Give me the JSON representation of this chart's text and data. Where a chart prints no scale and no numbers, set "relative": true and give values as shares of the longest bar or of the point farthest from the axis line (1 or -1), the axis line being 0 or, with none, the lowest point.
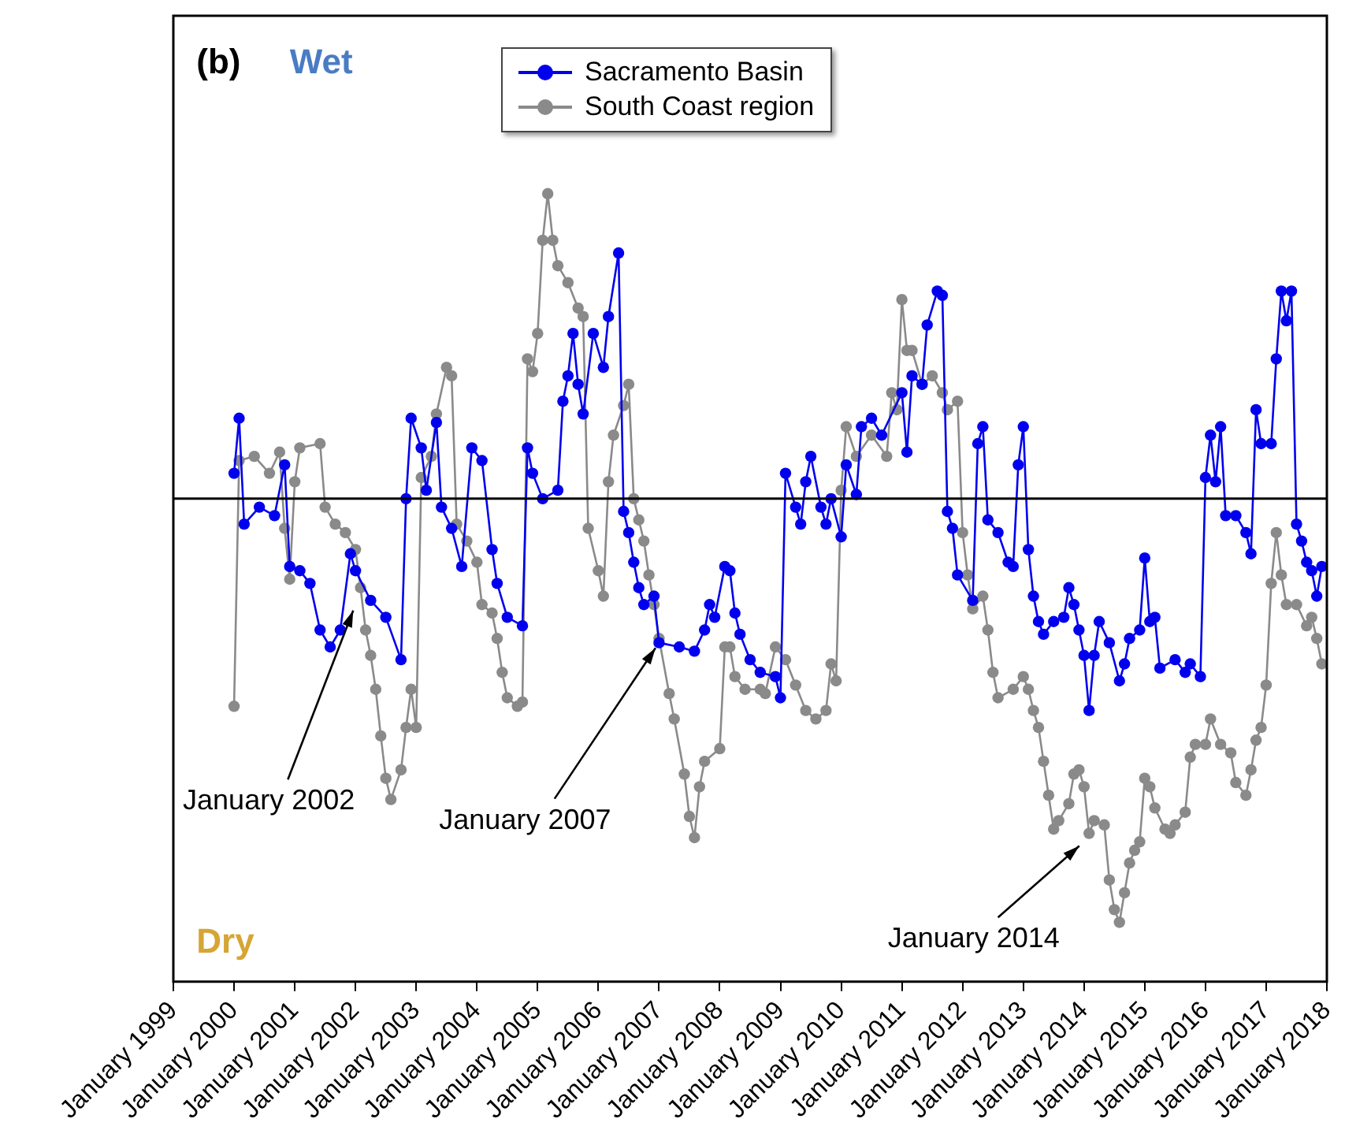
{
  "chart_data": {
    "type": "line",
    "relative": true,
    "marker": "circle",
    "legend": "top",
    "xlim": [
      "1999-01",
      "2018-01"
    ],
    "xticks": [
      {
        "value": "1999-01",
        "label": "January 1999"
      },
      {
        "value": "2000-01",
        "label": "January 2000"
      },
      {
        "value": "2001-01",
        "label": "January 2001"
      },
      {
        "value": "2002-01",
        "label": "January 2002"
      },
      {
        "value": "2003-01",
        "label": "January 2003"
      },
      {
        "value": "2004-01",
        "label": "January 2004"
      },
      {
        "value": "2005-01",
        "label": "January 2005"
      },
      {
        "value": "2006-01",
        "label": "January 2006"
      },
      {
        "value": "2007-01",
        "label": "January 2007"
      },
      {
        "value": "2008-01",
        "label": "January 2008"
      },
      {
        "value": "2009-01",
        "label": "January 2009"
      },
      {
        "value": "2010-01",
        "label": "January 2010"
      },
      {
        "value": "2011-01",
        "label": "January 2011"
      },
      {
        "value": "2012-01",
        "label": "January 2012"
      },
      {
        "value": "2013-01",
        "label": "January 2013"
      },
      {
        "value": "2014-01",
        "label": "January 2014"
      },
      {
        "value": "2015-01",
        "label": "January 2015"
      },
      {
        "value": "2016-01",
        "label": "January 2016"
      },
      {
        "value": "2017-01",
        "label": "January 2017"
      },
      {
        "value": "2018-01",
        "label": "January 2018"
      }
    ],
    "ref_lines": [
      {
        "axis": "y",
        "value": 0,
        "color": "#000000"
      }
    ],
    "annotations": [
      "(b)",
      "Wet",
      "Dry",
      {
        "text": "January 2002",
        "x": "2002-01",
        "y": -0.25
      },
      {
        "text": "January 2007",
        "x": "2007-01",
        "y": -0.34
      },
      {
        "text": "January 2014",
        "x": "2014-01",
        "y": -0.81
      }
    ],
    "series": [
      {
        "name": "Sacramento Basin",
        "color": "#0000ee",
        "x": [
          "2000-01",
          "2000-02",
          "2000-03",
          "2000-06",
          "2000-09",
          "2000-11",
          "2000-12",
          "2001-02",
          "2001-04",
          "2001-06",
          "2001-08",
          "2001-10",
          "2001-12",
          "2002-01",
          "2002-04",
          "2002-07",
          "2002-10",
          "2002-11",
          "2002-12",
          "2003-02",
          "2003-03",
          "2003-05",
          "2003-06",
          "2003-08",
          "2003-10",
          "2003-12",
          "2004-02",
          "2004-04",
          "2004-05",
          "2004-07",
          "2004-10",
          "2004-11",
          "2004-12",
          "2005-02",
          "2005-05",
          "2005-06",
          "2005-07",
          "2005-08",
          "2005-09",
          "2005-10",
          "2005-12",
          "2006-02",
          "2006-03",
          "2006-05",
          "2006-06",
          "2006-07",
          "2006-08",
          "2006-09",
          "2006-10",
          "2006-12",
          "2007-01",
          "2007-05",
          "2007-08",
          "2007-10",
          "2007-11",
          "2007-12",
          "2008-02",
          "2008-03",
          "2008-04",
          "2008-05",
          "2008-07",
          "2008-09",
          "2008-12",
          "2009-01",
          "2009-02",
          "2009-04",
          "2009-05",
          "2009-06",
          "2009-07",
          "2009-09",
          "2009-10",
          "2009-11",
          "2010-01",
          "2010-02",
          "2010-04",
          "2010-05",
          "2010-07",
          "2010-09",
          "2011-01",
          "2011-02",
          "2011-03",
          "2011-05",
          "2011-06",
          "2011-08",
          "2011-09",
          "2011-10",
          "2011-11",
          "2011-12",
          "2012-03",
          "2012-04",
          "2012-05",
          "2012-06",
          "2012-08",
          "2012-10",
          "2012-11",
          "2012-12",
          "2013-01",
          "2013-02",
          "2013-03",
          "2013-04",
          "2013-05",
          "2013-07",
          "2013-09",
          "2013-10",
          "2013-11",
          "2013-12",
          "2014-01",
          "2014-02",
          "2014-03",
          "2014-04",
          "2014-06",
          "2014-08",
          "2014-09",
          "2014-10",
          "2014-12",
          "2015-01",
          "2015-02",
          "2015-03",
          "2015-04",
          "2015-07",
          "2015-09",
          "2015-10",
          "2015-12",
          "2016-01",
          "2016-02",
          "2016-03",
          "2016-04",
          "2016-05",
          "2016-07",
          "2016-09",
          "2016-10",
          "2016-11",
          "2016-12",
          "2017-02",
          "2017-03",
          "2017-04",
          "2017-05",
          "2017-06",
          "2017-07",
          "2017-08",
          "2017-09",
          "2017-10",
          "2017-11",
          "2017-12"
        ],
        "values": [
          0.06,
          0.19,
          -0.06,
          -0.02,
          -0.04,
          0.08,
          -0.16,
          -0.17,
          -0.2,
          -0.31,
          -0.35,
          -0.31,
          -0.13,
          -0.17,
          -0.24,
          -0.28,
          -0.38,
          0.0,
          0.19,
          0.12,
          0.02,
          0.18,
          -0.02,
          -0.07,
          -0.16,
          0.12,
          0.09,
          -0.12,
          -0.2,
          -0.28,
          -0.3,
          0.12,
          0.06,
          0.0,
          0.02,
          0.23,
          0.29,
          0.39,
          0.27,
          0.2,
          0.39,
          0.31,
          0.43,
          0.58,
          -0.03,
          -0.08,
          -0.15,
          -0.21,
          -0.25,
          -0.23,
          -0.34,
          -0.35,
          -0.36,
          -0.31,
          -0.25,
          -0.28,
          -0.16,
          -0.17,
          -0.27,
          -0.32,
          -0.38,
          -0.41,
          -0.42,
          -0.47,
          0.06,
          -0.02,
          -0.06,
          0.04,
          0.1,
          -0.02,
          -0.06,
          0.0,
          -0.09,
          0.08,
          0.01,
          0.17,
          0.19,
          0.15,
          0.25,
          0.11,
          0.29,
          0.27,
          0.41,
          0.49,
          0.48,
          -0.03,
          -0.07,
          -0.18,
          -0.24,
          0.13,
          0.17,
          -0.05,
          -0.08,
          -0.15,
          -0.16,
          0.08,
          0.17,
          -0.12,
          -0.23,
          -0.29,
          -0.32,
          -0.29,
          -0.28,
          -0.21,
          -0.25,
          -0.31,
          -0.37,
          -0.5,
          -0.37,
          -0.29,
          -0.34,
          -0.43,
          -0.39,
          -0.33,
          -0.31,
          -0.14,
          -0.29,
          -0.28,
          -0.4,
          -0.38,
          -0.41,
          -0.39,
          -0.42,
          0.05,
          0.15,
          0.04,
          0.17,
          -0.04,
          -0.04,
          -0.08,
          -0.13,
          0.21,
          0.13,
          0.13,
          0.33,
          0.49,
          0.42,
          0.49,
          -0.06,
          -0.1,
          -0.15,
          -0.17,
          -0.23,
          -0.16
        ]
      },
      {
        "name": "South Coast region",
        "color": "#8a8a8a",
        "x": [
          "2000-01",
          "2000-02",
          "2000-05",
          "2000-08",
          "2000-10",
          "2000-11",
          "2000-12",
          "2001-01",
          "2001-02",
          "2001-06",
          "2001-07",
          "2001-09",
          "2001-11",
          "2002-01",
          "2002-02",
          "2002-03",
          "2002-04",
          "2002-05",
          "2002-06",
          "2002-07",
          "2002-08",
          "2002-10",
          "2002-11",
          "2002-12",
          "2003-01",
          "2003-02",
          "2003-04",
          "2003-05",
          "2003-07",
          "2003-08",
          "2003-09",
          "2003-11",
          "2004-01",
          "2004-02",
          "2004-04",
          "2004-05",
          "2004-06",
          "2004-07",
          "2004-09",
          "2004-10",
          "2004-11",
          "2004-12",
          "2005-01",
          "2005-02",
          "2005-03",
          "2005-04",
          "2005-05",
          "2005-07",
          "2005-09",
          "2005-10",
          "2005-11",
          "2006-01",
          "2006-02",
          "2006-03",
          "2006-04",
          "2006-06",
          "2006-07",
          "2006-08",
          "2006-09",
          "2006-10",
          "2006-11",
          "2006-12",
          "2007-01",
          "2007-03",
          "2007-04",
          "2007-06",
          "2007-07",
          "2007-08",
          "2007-09",
          "2007-10",
          "2008-01",
          "2008-02",
          "2008-03",
          "2008-04",
          "2008-06",
          "2008-09",
          "2008-10",
          "2008-12",
          "2009-02",
          "2009-04",
          "2009-06",
          "2009-08",
          "2009-10",
          "2009-11",
          "2009-12",
          "2010-01",
          "2010-02",
          "2010-04",
          "2010-07",
          "2010-10",
          "2010-11",
          "2010-12",
          "2011-01",
          "2011-02",
          "2011-03",
          "2011-05",
          "2011-07",
          "2011-09",
          "2011-10",
          "2011-12",
          "2012-01",
          "2012-02",
          "2012-03",
          "2012-05",
          "2012-06",
          "2012-07",
          "2012-08",
          "2012-11",
          "2013-01",
          "2013-02",
          "2013-03",
          "2013-04",
          "2013-05",
          "2013-06",
          "2013-07",
          "2013-08",
          "2013-10",
          "2013-11",
          "2013-12",
          "2014-01",
          "2014-02",
          "2014-03",
          "2014-05",
          "2014-06",
          "2014-07",
          "2014-08",
          "2014-09",
          "2014-10",
          "2014-11",
          "2014-12",
          "2015-01",
          "2015-02",
          "2015-03",
          "2015-05",
          "2015-06",
          "2015-07",
          "2015-09",
          "2015-10",
          "2015-11",
          "2016-01",
          "2016-02",
          "2016-04",
          "2016-06",
          "2016-07",
          "2016-09",
          "2016-10",
          "2016-11",
          "2016-12",
          "2017-01",
          "2017-02",
          "2017-03",
          "2017-04",
          "2017-05",
          "2017-07",
          "2017-09",
          "2017-10",
          "2017-11",
          "2017-12"
        ],
        "values": [
          -0.49,
          0.09,
          0.1,
          0.06,
          0.11,
          -0.07,
          -0.19,
          0.04,
          0.12,
          0.13,
          -0.02,
          -0.06,
          -0.08,
          -0.12,
          -0.21,
          -0.31,
          -0.37,
          -0.45,
          -0.56,
          -0.66,
          -0.71,
          -0.64,
          -0.54,
          -0.45,
          -0.54,
          0.05,
          0.1,
          0.2,
          0.31,
          0.29,
          -0.06,
          -0.1,
          -0.15,
          -0.25,
          -0.27,
          -0.33,
          -0.41,
          -0.47,
          -0.49,
          -0.48,
          0.33,
          0.3,
          0.39,
          0.61,
          0.72,
          0.61,
          0.55,
          0.51,
          0.45,
          0.43,
          -0.07,
          -0.17,
          -0.23,
          0.04,
          0.15,
          0.22,
          0.27,
          0.0,
          -0.05,
          -0.1,
          -0.18,
          -0.25,
          -0.33,
          -0.46,
          -0.52,
          -0.65,
          -0.75,
          -0.8,
          -0.68,
          -0.62,
          -0.59,
          -0.35,
          -0.35,
          -0.42,
          -0.45,
          -0.45,
          -0.46,
          -0.35,
          -0.38,
          -0.44,
          -0.5,
          -0.52,
          -0.5,
          -0.39,
          -0.43,
          0.02,
          0.17,
          0.1,
          0.15,
          0.1,
          0.25,
          0.21,
          0.47,
          0.35,
          0.35,
          0.27,
          0.29,
          0.25,
          0.21,
          0.23,
          -0.08,
          -0.18,
          -0.26,
          -0.23,
          -0.31,
          -0.41,
          -0.47,
          -0.45,
          -0.42,
          -0.45,
          -0.5,
          -0.54,
          -0.62,
          -0.7,
          -0.78,
          -0.76,
          -0.72,
          -0.65,
          -0.64,
          -0.68,
          -0.79,
          -0.76,
          -0.77,
          -0.9,
          -0.97,
          -1.0,
          -0.93,
          -0.86,
          -0.83,
          -0.81,
          -0.66,
          -0.68,
          -0.73,
          -0.78,
          -0.79,
          -0.77,
          -0.74,
          -0.61,
          -0.58,
          -0.58,
          -0.52,
          -0.58,
          -0.6,
          -0.67,
          -0.7,
          -0.64,
          -0.57,
          -0.54,
          -0.44,
          -0.2,
          -0.08,
          -0.18,
          -0.25,
          -0.25,
          -0.3,
          -0.28,
          -0.33,
          -0.39
        ]
      }
    ]
  }
}
